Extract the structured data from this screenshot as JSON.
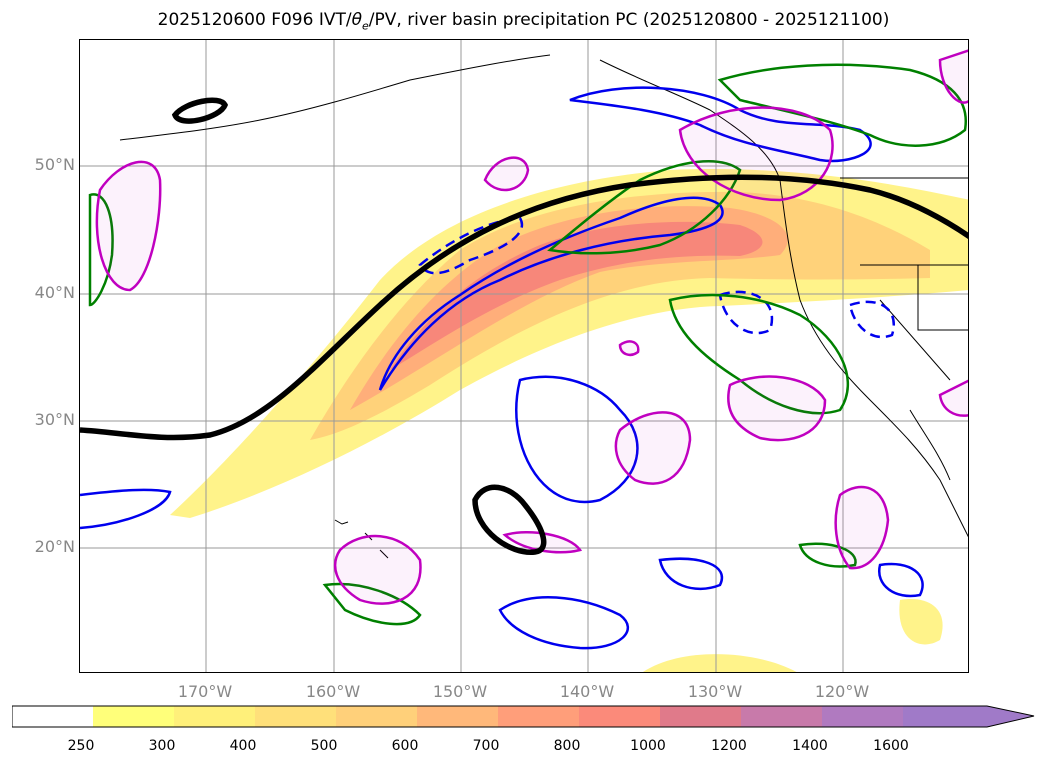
{
  "title": "2025120600 F096 IVT/θe/PV, river basin precipitation PC (2025120800 - 2025121100)",
  "title_parts": {
    "pre": "2025120600 F096 IVT/",
    "theta": "θ",
    "sub": "e",
    "post": "/PV, river basin precipitation PC (2025120800 - 2025121100)"
  },
  "lat_labels": [
    "50°N",
    "40°N",
    "30°N",
    "20°N"
  ],
  "lon_labels": [
    "170°W",
    "160°W",
    "150°W",
    "140°W",
    "130°W",
    "120°W"
  ],
  "colorbar": {
    "ticks": [
      "250",
      "300",
      "400",
      "500",
      "600",
      "700",
      "800",
      "1000",
      "1200",
      "1400",
      "1600"
    ],
    "colors": [
      "#ffffff",
      "#ffff7a",
      "#fff07a",
      "#ffe07a",
      "#ffd07a",
      "#ffb87a",
      "#ff9e7a",
      "#fb8a7a",
      "#e07a8a",
      "#c87aaa",
      "#b07ac0",
      "#a07ac8"
    ]
  },
  "colors": {
    "ivt_1": "#fff38a",
    "ivt_2": "#ffd27a",
    "ivt_3": "#ffae7a",
    "ivt_4": "#f7877a",
    "pv_contour": "#0000ee",
    "theta_contour": "#008000",
    "precip_contour": "#c000c0",
    "jet_line": "#000000"
  }
}
